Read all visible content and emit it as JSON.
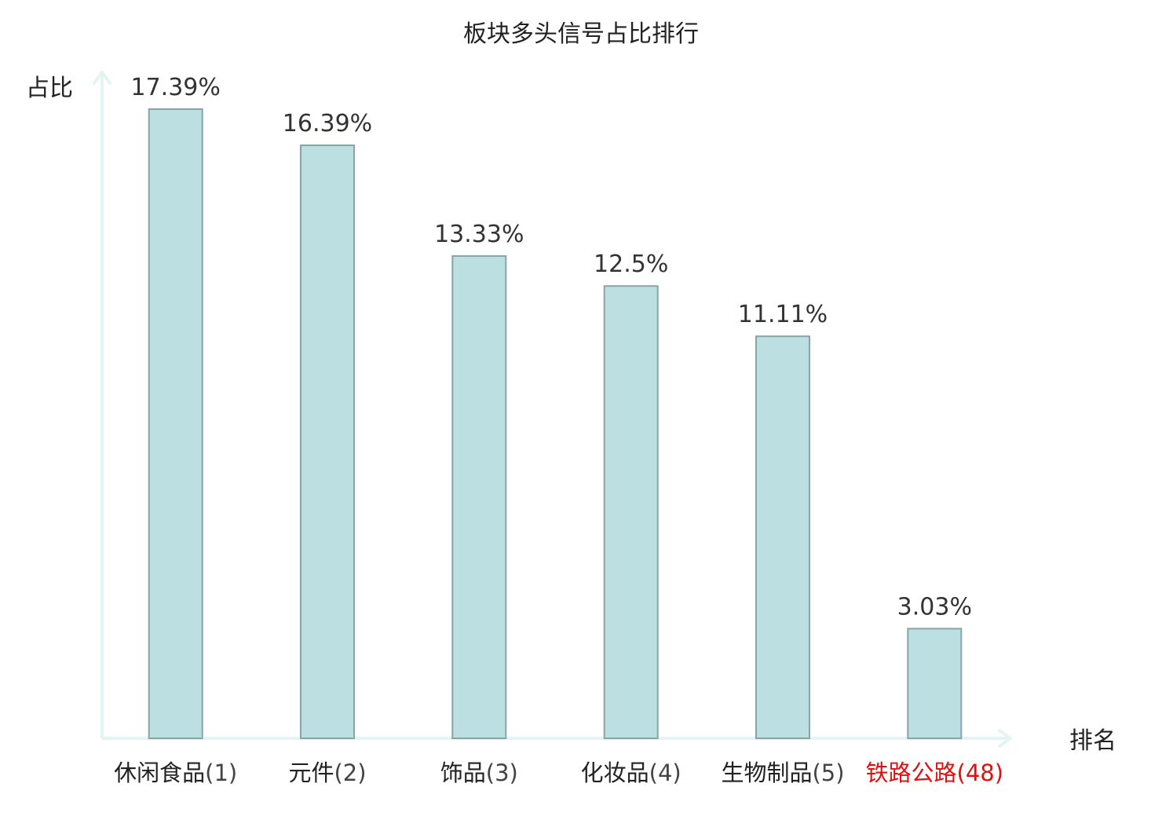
{
  "chart_data": {
    "type": "bar",
    "title": "板块多头信号占比排行",
    "ylabel": "占比",
    "xlabel": "排名",
    "ylim": [
      0,
      17.8
    ],
    "grid": false,
    "legend": "none",
    "categories": [
      {
        "name": "休闲食品",
        "rank": "(1)",
        "highlight": false
      },
      {
        "name": "元件",
        "rank": "(2)",
        "highlight": false
      },
      {
        "name": "饰品",
        "rank": "(3)",
        "highlight": false
      },
      {
        "name": "化妆品",
        "rank": "(4)",
        "highlight": false
      },
      {
        "name": "生物制品",
        "rank": "(5)",
        "highlight": false
      },
      {
        "name": "铁路公路",
        "rank": "(48)",
        "highlight": true
      }
    ],
    "values": [
      17.39,
      16.39,
      13.33,
      12.5,
      11.11,
      3.03
    ],
    "value_labels": [
      "17.39%",
      "16.39%",
      "13.33%",
      "12.5%",
      "11.11%",
      "3.03%"
    ],
    "colors": {
      "bar_fill": "#bce0e2",
      "bar_stroke": "#87a4a6",
      "axis": "#e3f4f2",
      "text": "#333333",
      "title": "#222222",
      "category_text": "#222222",
      "rank_text": "#444444",
      "highlight": "#e30f0f"
    }
  }
}
